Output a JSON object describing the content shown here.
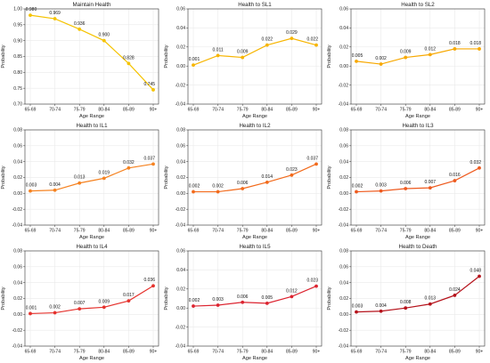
{
  "chart_data": [
    {
      "type": "line",
      "title": "Maintain Health",
      "xlabel": "Age Range",
      "ylabel": "Probability",
      "categories": [
        "65-69",
        "70-74",
        "75-79",
        "80-84",
        "85-89",
        "90+"
      ],
      "values": [
        0.98,
        0.969,
        0.936,
        0.9,
        0.828,
        0.745
      ],
      "labels": [
        "0.980",
        "0.969",
        "0.936",
        "0.900",
        "0.828",
        "0.745"
      ],
      "ylim": [
        0.7,
        1.0
      ],
      "yticks": [
        "0.70",
        "0.75",
        "0.80",
        "0.85",
        "0.90",
        "0.95",
        "1.00"
      ],
      "color": "#f5c300",
      "grid": true
    },
    {
      "type": "line",
      "title": "Health to SL1",
      "xlabel": "Age Range",
      "ylabel": "Probability",
      "categories": [
        "65-69",
        "70-74",
        "75-79",
        "80-84",
        "85-89",
        "90+"
      ],
      "values": [
        0.001,
        0.011,
        0.009,
        0.022,
        0.029,
        0.022
      ],
      "labels": [
        "0.001",
        "0.011",
        "0.009",
        "0.022",
        "0.029",
        "0.022"
      ],
      "ylim": [
        -0.04,
        0.06
      ],
      "yticks": [
        "-0.04",
        "-0.02",
        "0.00",
        "0.02",
        "0.04",
        "0.06"
      ],
      "color": "#f7b500",
      "grid": true
    },
    {
      "type": "line",
      "title": "Health to SL2",
      "xlabel": "Age Range",
      "ylabel": "Probability",
      "categories": [
        "65-69",
        "70-74",
        "75-79",
        "80-84",
        "85-89",
        "90+"
      ],
      "values": [
        0.005,
        0.002,
        0.009,
        0.012,
        0.018,
        0.018
      ],
      "labels": [
        "0.005",
        "0.002",
        "0.009",
        "0.012",
        "0.018",
        "0.018"
      ],
      "ylim": [
        -0.04,
        0.06
      ],
      "yticks": [
        "-0.04",
        "-0.02",
        "0.00",
        "0.02",
        "0.04",
        "0.06"
      ],
      "color": "#f7a800",
      "grid": true
    },
    {
      "type": "line",
      "title": "Health to IL1",
      "xlabel": "Age Range",
      "ylabel": "Probability",
      "categories": [
        "65-69",
        "70-74",
        "75-79",
        "80-84",
        "85-89",
        "90+"
      ],
      "values": [
        0.003,
        0.004,
        0.013,
        0.019,
        0.032,
        0.037
      ],
      "labels": [
        "0.003",
        "0.004",
        "0.013",
        "0.019",
        "0.032",
        "0.037"
      ],
      "ylim": [
        -0.04,
        0.08
      ],
      "yticks": [
        "-0.04",
        "-0.02",
        "0.00",
        "0.02",
        "0.04",
        "0.06",
        "0.08"
      ],
      "color": "#f58220",
      "grid": true
    },
    {
      "type": "line",
      "title": "Health to IL2",
      "xlabel": "Age Range",
      "ylabel": "Probability",
      "categories": [
        "65-69",
        "70-74",
        "75-79",
        "80-84",
        "85-89",
        "90+"
      ],
      "values": [
        0.002,
        0.002,
        0.006,
        0.014,
        0.023,
        0.037
      ],
      "labels": [
        "0.002",
        "0.002",
        "0.006",
        "0.014",
        "0.023",
        "0.037"
      ],
      "ylim": [
        -0.04,
        0.08
      ],
      "yticks": [
        "-0.04",
        "-0.02",
        "0.00",
        "0.02",
        "0.04",
        "0.06",
        "0.08"
      ],
      "color": "#f26a1b",
      "grid": true
    },
    {
      "type": "line",
      "title": "Health to IL3",
      "xlabel": "Age Range",
      "ylabel": "Probability",
      "categories": [
        "65-69",
        "70-74",
        "75-79",
        "80-84",
        "85-89",
        "90+"
      ],
      "values": [
        0.002,
        0.003,
        0.006,
        0.007,
        0.016,
        0.032
      ],
      "labels": [
        "0.002",
        "0.003",
        "0.006",
        "0.007",
        "0.016",
        "0.032"
      ],
      "ylim": [
        -0.04,
        0.08
      ],
      "yticks": [
        "-0.04",
        "-0.02",
        "0.00",
        "0.02",
        "0.04",
        "0.06",
        "0.08"
      ],
      "color": "#ee5a1e",
      "grid": true
    },
    {
      "type": "line",
      "title": "Health to IL4",
      "xlabel": "Age Range",
      "ylabel": "Probability",
      "categories": [
        "65-69",
        "70-74",
        "75-79",
        "80-84",
        "85-89",
        "90+"
      ],
      "values": [
        0.001,
        0.002,
        0.007,
        0.009,
        0.017,
        0.036
      ],
      "labels": [
        "0.001",
        "0.002",
        "0.007",
        "0.009",
        "0.017",
        "0.036"
      ],
      "ylim": [
        -0.04,
        0.08
      ],
      "yticks": [
        "-0.04",
        "-0.02",
        "0.00",
        "0.02",
        "0.04",
        "0.06",
        "0.08"
      ],
      "color": "#e5322d",
      "grid": true
    },
    {
      "type": "line",
      "title": "Health to IL5",
      "xlabel": "Age Range",
      "ylabel": "Probability",
      "categories": [
        "65-69",
        "70-74",
        "75-79",
        "80-84",
        "85-89",
        "90+"
      ],
      "values": [
        0.002,
        0.003,
        0.006,
        0.005,
        0.012,
        0.023
      ],
      "labels": [
        "0.002",
        "0.003",
        "0.006",
        "0.005",
        "0.012",
        "0.023"
      ],
      "ylim": [
        -0.04,
        0.06
      ],
      "yticks": [
        "-0.04",
        "-0.02",
        "0.00",
        "0.02",
        "0.04",
        "0.06"
      ],
      "color": "#dc2430",
      "grid": true
    },
    {
      "type": "line",
      "title": "Health to Death",
      "xlabel": "Age Range",
      "ylabel": "Probability",
      "categories": [
        "65-69",
        "70-74",
        "75-79",
        "80-84",
        "85-89",
        "90+"
      ],
      "values": [
        0.003,
        0.004,
        0.008,
        0.013,
        0.024,
        0.048
      ],
      "labels": [
        "0.003",
        "0.004",
        "0.008",
        "0.013",
        "0.024",
        "0.048"
      ],
      "ylim": [
        -0.04,
        0.08
      ],
      "yticks": [
        "-0.04",
        "-0.02",
        "0.00",
        "0.02",
        "0.04",
        "0.06",
        "0.08"
      ],
      "color": "#b5121b",
      "grid": true
    }
  ]
}
